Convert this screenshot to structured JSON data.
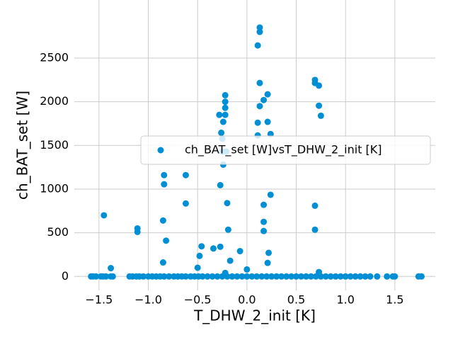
{
  "chart_data": {
    "type": "scatter",
    "xlabel": "T_DHW_2_init [K]",
    "ylabel": "ch_BAT_set [W]",
    "x": [
      -1.58,
      -1.56,
      -1.53,
      -1.48,
      -1.46,
      -1.43,
      -1.38,
      -1.36,
      -1.19,
      -1.16,
      -1.12,
      -1.09,
      -1.05,
      -1.0,
      -0.96,
      -0.92,
      -0.88,
      -0.84,
      -0.79,
      -0.74,
      -0.7,
      -0.66,
      -0.62,
      -0.57,
      -0.53,
      -0.49,
      -0.45,
      -0.4,
      -0.35,
      -0.3,
      -0.25,
      -0.2,
      -0.15,
      -0.1,
      -0.05,
      0.0,
      0.05,
      0.1,
      0.15,
      0.2,
      0.25,
      0.3,
      0.35,
      0.4,
      0.45,
      0.5,
      0.55,
      0.6,
      0.65,
      0.7,
      0.75,
      0.8,
      0.85,
      0.9,
      0.95,
      1.0,
      1.05,
      1.1,
      1.15,
      1.2,
      1.25,
      1.32,
      1.42,
      1.48,
      1.5,
      1.74,
      1.77,
      -1.45,
      -1.38,
      -1.11,
      -1.11,
      -0.84,
      -0.84,
      -0.85,
      -0.82,
      -0.85,
      -0.62,
      -0.62,
      -0.5,
      -0.48,
      -0.46,
      -0.34,
      -0.28,
      -0.27,
      -0.27,
      -0.26,
      -0.25,
      -0.25,
      -0.24,
      -0.24,
      -0.22,
      -0.22,
      -0.22,
      -0.22,
      -0.21,
      -0.2,
      -0.19,
      -0.17,
      -0.22,
      -0.07,
      0.0,
      0.11,
      0.13,
      0.13,
      0.13,
      0.13,
      0.11,
      0.11,
      0.17,
      0.17,
      0.17,
      0.17,
      0.21,
      0.21,
      0.24,
      0.22,
      0.21,
      0.24,
      0.69,
      0.69,
      0.73,
      0.73,
      0.75,
      0.69,
      0.69,
      0.73
    ],
    "series": [
      {
        "name": "ch_BAT_set [W]vsT_DHW_2_init [K]",
        "color": "#008fd5",
        "values": [
          0,
          0,
          0,
          0,
          0,
          0,
          0,
          0,
          0,
          0,
          0,
          0,
          0,
          0,
          0,
          0,
          0,
          0,
          0,
          0,
          0,
          0,
          0,
          0,
          0,
          0,
          0,
          0,
          0,
          0,
          0,
          0,
          0,
          0,
          0,
          0,
          0,
          0,
          0,
          0,
          0,
          0,
          0,
          0,
          0,
          0,
          0,
          0,
          0,
          0,
          0,
          0,
          0,
          0,
          0,
          0,
          0,
          0,
          0,
          0,
          0,
          0,
          0,
          0,
          0,
          0,
          0,
          700,
          95,
          550,
          510,
          1160,
          1055,
          640,
          410,
          160,
          1160,
          835,
          100,
          235,
          345,
          320,
          1850,
          1045,
          340,
          1645,
          1575,
          1430,
          1280,
          1770,
          2075,
          2000,
          1930,
          1850,
          1430,
          840,
          535,
          180,
          40,
          290,
          80,
          2645,
          2850,
          2800,
          2215,
          1950,
          1760,
          1615,
          2020,
          820,
          625,
          520,
          2085,
          1770,
          1630,
          270,
          155,
          935,
          2250,
          2215,
          2185,
          1955,
          1840,
          810,
          535,
          50
        ]
      }
    ],
    "xlim": [
      -1.75,
      1.91
    ],
    "ylim": [
      -160,
      3165
    ],
    "xticks": [
      {
        "value": -1.5,
        "label": "−1.5"
      },
      {
        "value": -1.0,
        "label": "−1.0"
      },
      {
        "value": -0.5,
        "label": "−0.5"
      },
      {
        "value": 0,
        "label": "0.0"
      },
      {
        "value": 0.5,
        "label": "0.5"
      },
      {
        "value": 1.0,
        "label": "1.0"
      },
      {
        "value": 1.5,
        "label": "1.5"
      }
    ],
    "yticks": [
      0,
      500,
      1000,
      1500,
      2000,
      2500
    ],
    "grid": true,
    "legend": "center right"
  }
}
